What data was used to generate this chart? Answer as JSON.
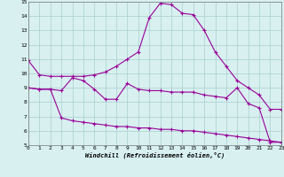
{
  "line1_x": [
    0,
    1,
    2,
    3,
    4,
    5,
    6,
    7,
    8,
    9,
    10,
    11,
    12,
    13,
    14,
    15,
    16,
    17,
    18,
    19,
    20,
    21,
    22,
    23
  ],
  "line1_y": [
    10.9,
    9.9,
    9.8,
    9.8,
    9.8,
    9.8,
    9.9,
    10.1,
    10.5,
    11.0,
    11.5,
    13.9,
    14.9,
    14.8,
    14.2,
    14.1,
    13.0,
    11.5,
    10.5,
    9.5,
    9.0,
    8.5,
    7.5,
    7.5
  ],
  "line2_x": [
    0,
    1,
    2,
    3,
    4,
    5,
    6,
    7,
    8,
    9,
    10,
    11,
    12,
    13,
    14,
    15,
    16,
    17,
    18,
    19,
    20,
    21,
    22,
    23
  ],
  "line2_y": [
    9.0,
    8.9,
    8.9,
    8.8,
    9.7,
    9.5,
    8.9,
    8.2,
    8.2,
    9.3,
    8.9,
    8.8,
    8.8,
    8.7,
    8.7,
    8.7,
    8.5,
    8.4,
    8.3,
    9.0,
    7.9,
    7.6,
    5.2,
    5.2
  ],
  "line3_x": [
    0,
    1,
    2,
    3,
    4,
    5,
    6,
    7,
    8,
    9,
    10,
    11,
    12,
    13,
    14,
    15,
    16,
    17,
    18,
    19,
    20,
    21,
    22,
    23
  ],
  "line3_y": [
    9.0,
    8.9,
    8.9,
    6.9,
    6.7,
    6.6,
    6.5,
    6.4,
    6.3,
    6.3,
    6.2,
    6.2,
    6.1,
    6.1,
    6.0,
    6.0,
    5.9,
    5.8,
    5.7,
    5.6,
    5.5,
    5.4,
    5.3,
    5.2
  ],
  "color": "#990099",
  "bg_color": "#d8f0f0",
  "grid_color": "#aacece",
  "ylim": [
    5,
    15
  ],
  "xlim": [
    0,
    23
  ],
  "yticks": [
    5,
    6,
    7,
    8,
    9,
    10,
    11,
    12,
    13,
    14,
    15
  ],
  "xticks": [
    0,
    1,
    2,
    3,
    4,
    5,
    6,
    7,
    8,
    9,
    10,
    11,
    12,
    13,
    14,
    15,
    16,
    17,
    18,
    19,
    20,
    21,
    22,
    23
  ],
  "xlabel": "Windchill (Refroidissement éolien,°C)",
  "marker": "+"
}
